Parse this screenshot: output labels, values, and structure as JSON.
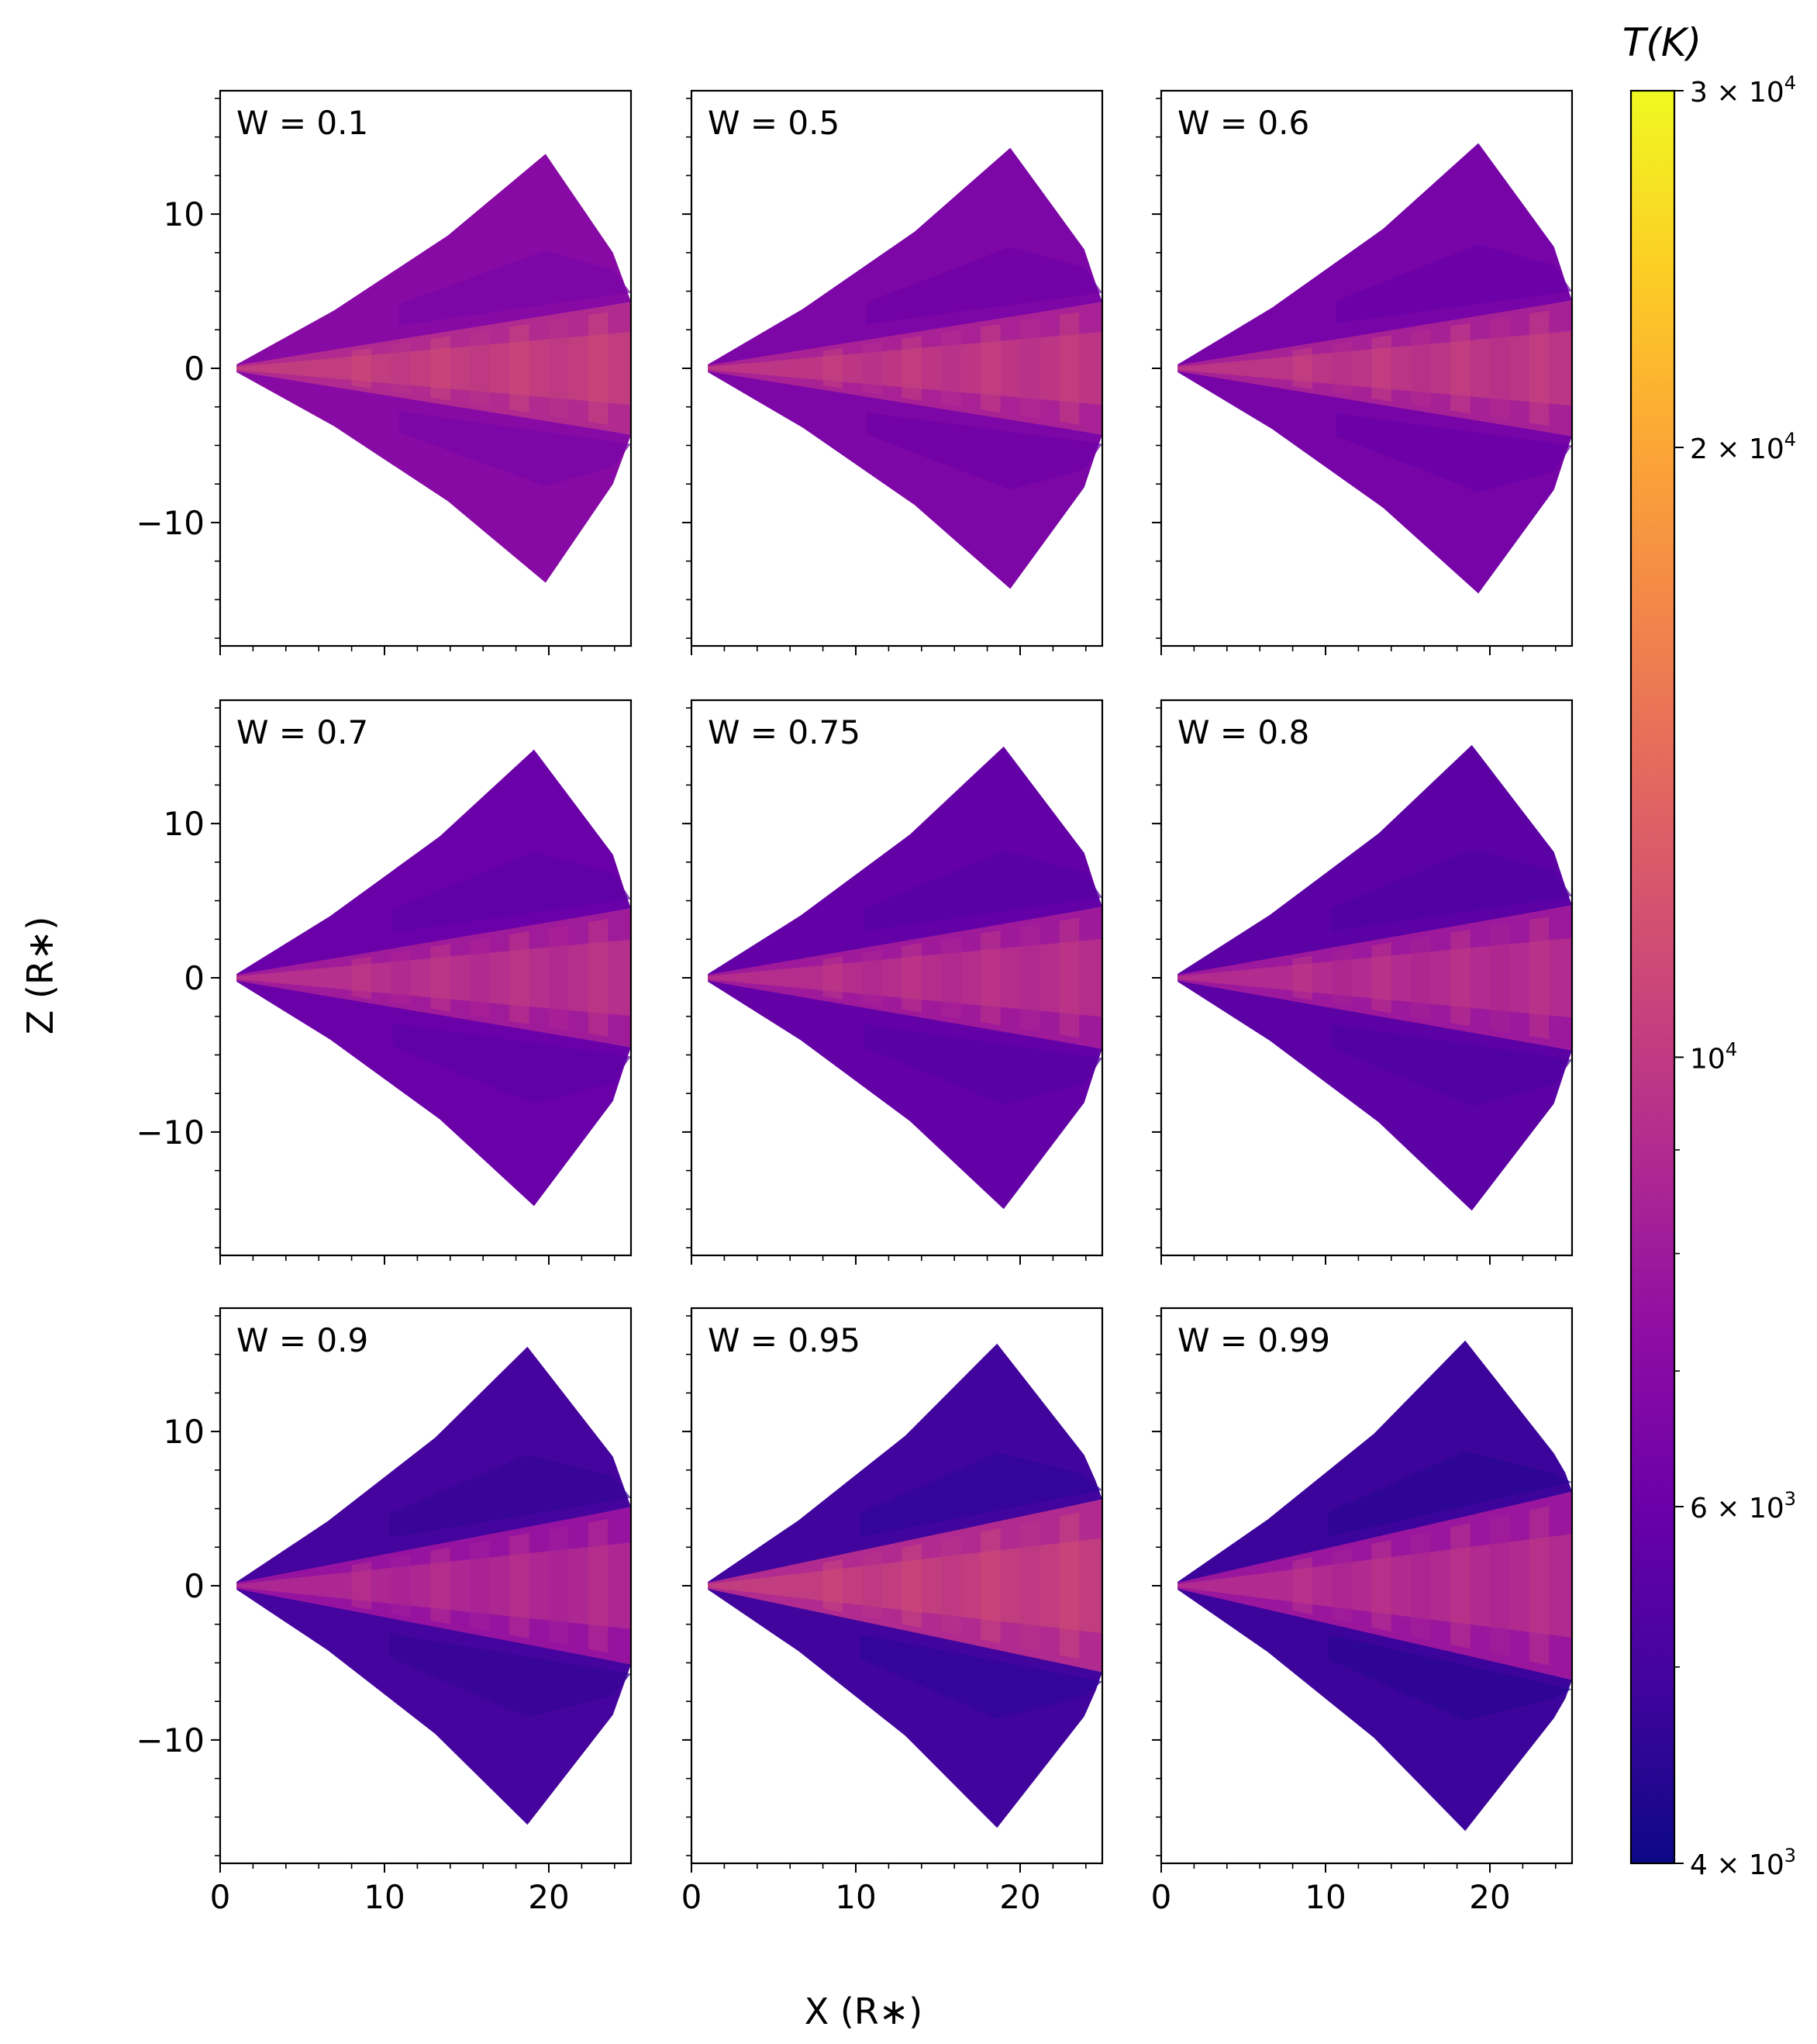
{
  "figure": {
    "xlabel": "X (R∗)",
    "ylabel": "Z (R∗)"
  },
  "colorbar": {
    "title": "T(K)",
    "scale": "log",
    "range": [
      4000,
      30000
    ],
    "colormap": "plasma",
    "ticks": [
      {
        "value": 30000,
        "mantissa": "3",
        "exp": "4"
      },
      {
        "value": 20000,
        "mantissa": "2",
        "exp": "4"
      },
      {
        "value": 10000,
        "mantissa": "",
        "exp": "4"
      },
      {
        "value": 6000,
        "mantissa": "6",
        "exp": "3"
      },
      {
        "value": 4000,
        "mantissa": "4",
        "exp": "3"
      }
    ],
    "minor_ticks": [
      5000,
      7000,
      8000,
      9000
    ]
  },
  "axes": {
    "xlim": [
      0,
      25
    ],
    "ylim": [
      -18,
      18
    ],
    "x_ticks": [
      0,
      10,
      20
    ],
    "y_ticks": [
      10,
      0,
      -10
    ],
    "x_tick_labels": [
      "0",
      "10",
      "20"
    ],
    "y_tick_labels": [
      "10",
      "0",
      "−10"
    ]
  },
  "chart_data": {
    "type": "heatmap",
    "description_units": "temperature in K on wedge-shaped disk grid",
    "panels": [
      {
        "label": "W = 0.1",
        "W": 0.1,
        "tip_x": 19.8,
        "tip_z": 13.9,
        "disk_half_z": 4.3,
        "wind_T": 7000,
        "disk_T": 10500
      },
      {
        "label": "W = 0.5",
        "W": 0.5,
        "tip_x": 19.4,
        "tip_z": 14.3,
        "disk_half_z": 4.3,
        "wind_T": 6600,
        "disk_T": 10000
      },
      {
        "label": "W = 0.6",
        "W": 0.6,
        "tip_x": 19.3,
        "tip_z": 14.6,
        "disk_half_z": 4.4,
        "wind_T": 6400,
        "disk_T": 9900
      },
      {
        "label": "W = 0.7",
        "W": 0.7,
        "tip_x": 19.1,
        "tip_z": 14.8,
        "disk_half_z": 4.5,
        "wind_T": 6000,
        "disk_T": 9500
      },
      {
        "label": "W = 0.75",
        "W": 0.75,
        "tip_x": 19.0,
        "tip_z": 15.0,
        "disk_half_z": 4.6,
        "wind_T": 5800,
        "disk_T": 9400
      },
      {
        "label": "W = 0.8",
        "W": 0.8,
        "tip_x": 18.9,
        "tip_z": 15.1,
        "disk_half_z": 4.7,
        "wind_T": 5600,
        "disk_T": 9300
      },
      {
        "label": "W = 0.9",
        "W": 0.9,
        "tip_x": 18.7,
        "tip_z": 15.5,
        "disk_half_z": 5.1,
        "wind_T": 5000,
        "disk_T": 9000
      },
      {
        "label": "W = 0.95",
        "W": 0.95,
        "tip_x": 18.6,
        "tip_z": 15.7,
        "disk_half_z": 5.6,
        "wind_T": 4900,
        "disk_T": 10500
      },
      {
        "label": "W = 0.99",
        "W": 0.99,
        "tip_x": 18.5,
        "tip_z": 15.9,
        "disk_half_z": 6.1,
        "wind_T": 4800,
        "disk_T": 9200
      }
    ]
  }
}
